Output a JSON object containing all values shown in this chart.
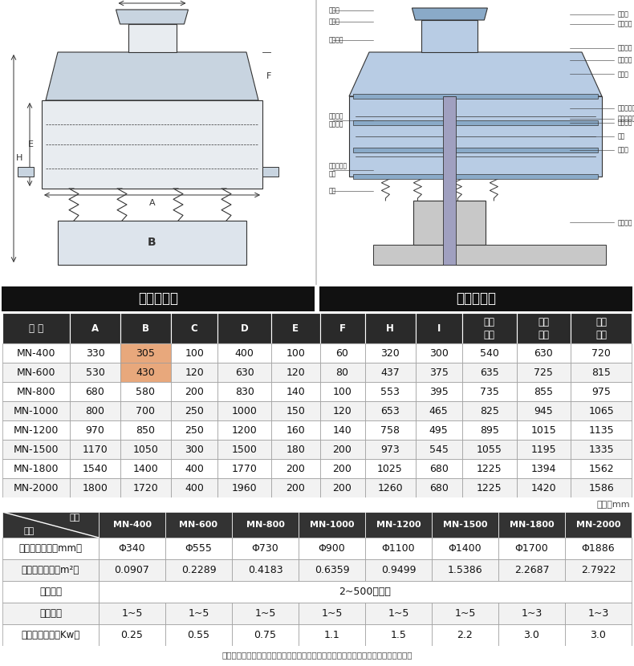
{
  "title_bar1": "外形尺寸图",
  "title_bar2": "一般结构图",
  "table1_header": [
    "型 号",
    "A",
    "B",
    "C",
    "D",
    "E",
    "F",
    "H",
    "I",
    "一层\n高度",
    "二层\n高度",
    "三层\n高度"
  ],
  "table1_rows": [
    [
      "MN-400",
      "330",
      "305",
      "100",
      "400",
      "100",
      "60",
      "320",
      "300",
      "540",
      "630",
      "720"
    ],
    [
      "MN-600",
      "530",
      "430",
      "120",
      "630",
      "120",
      "80",
      "437",
      "375",
      "635",
      "725",
      "815"
    ],
    [
      "MN-800",
      "680",
      "580",
      "200",
      "830",
      "140",
      "100",
      "553",
      "395",
      "735",
      "855",
      "975"
    ],
    [
      "MN-1000",
      "800",
      "700",
      "250",
      "1000",
      "150",
      "120",
      "653",
      "465",
      "825",
      "945",
      "1065"
    ],
    [
      "MN-1200",
      "970",
      "850",
      "250",
      "1200",
      "160",
      "140",
      "758",
      "495",
      "895",
      "1015",
      "1135"
    ],
    [
      "MN-1500",
      "1170",
      "1050",
      "300",
      "1500",
      "180",
      "200",
      "973",
      "545",
      "1055",
      "1195",
      "1335"
    ],
    [
      "MN-1800",
      "1540",
      "1400",
      "400",
      "1770",
      "200",
      "200",
      "1025",
      "680",
      "1225",
      "1394",
      "1562"
    ],
    [
      "MN-2000",
      "1800",
      "1720",
      "400",
      "1960",
      "200",
      "200",
      "1260",
      "680",
      "1225",
      "1420",
      "1586"
    ]
  ],
  "unit_note": "单位：mm",
  "model_headers": [
    "MN-400",
    "MN-600",
    "MN-800",
    "MN-1000",
    "MN-1200",
    "MN-1500",
    "MN-1800",
    "MN-2000"
  ],
  "table2_rows": [
    [
      "有效筛分直径（mm）",
      "Φ340",
      "Φ555",
      "Φ730",
      "Φ900",
      "Φ1100",
      "Φ1400",
      "Φ1700",
      "Φ1886"
    ],
    [
      "有效筛分面积（m²）",
      "0.0907",
      "0.2289",
      "0.4183",
      "0.6359",
      "0.9499",
      "1.5386",
      "2.2687",
      "2.7922"
    ],
    [
      "筛网规格",
      "2~500目／吸"
    ],
    [
      "筛机层数",
      "1~5",
      "1~5",
      "1~5",
      "1~5",
      "1~5",
      "1~5",
      "1~3",
      "1~3"
    ],
    [
      "振动电机功率（Kw）",
      "0.25",
      "0.55",
      "0.75",
      "1.1",
      "1.5",
      "2.2",
      "3.0",
      "3.0"
    ]
  ],
  "footnote": "注：由于设备型号不同，成品尺寸会有些许差异，表中数据仅供参考，需以实物为准。",
  "header_bg": "#2a2a2a",
  "header_fg": "#ffffff",
  "title_bar_bg": "#111111",
  "highlight_orange": "#e8a87c",
  "grid_color": "#999999",
  "row_bg1": "#ffffff",
  "row_bg2": "#f2f2f2",
  "t2_header_bg": "#333333",
  "diagram_bg": "#f8f8f8",
  "diagram_line": "#333333",
  "diagram_fill": "#d0d8e8",
  "diagram_right_fill": "#b8cce4"
}
